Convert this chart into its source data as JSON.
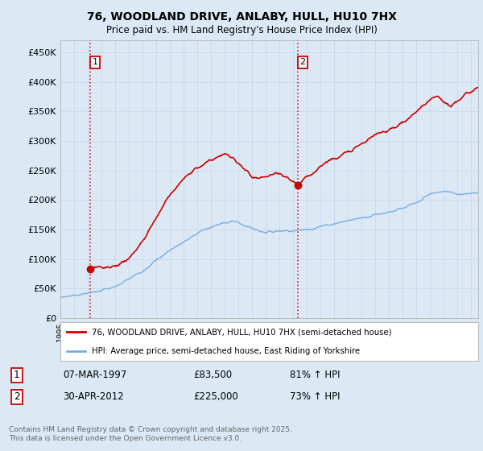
{
  "title": "76, WOODLAND DRIVE, ANLABY, HULL, HU10 7HX",
  "subtitle": "Price paid vs. HM Land Registry's House Price Index (HPI)",
  "ylabel_ticks": [
    "£0",
    "£50K",
    "£100K",
    "£150K",
    "£200K",
    "£250K",
    "£300K",
    "£350K",
    "£400K",
    "£450K"
  ],
  "ytick_values": [
    0,
    50000,
    100000,
    150000,
    200000,
    250000,
    300000,
    350000,
    400000,
    450000
  ],
  "ylim": [
    0,
    470000
  ],
  "xlim_start": 1995.0,
  "xlim_end": 2025.5,
  "purchase1": {
    "date_num": 1997.18,
    "price": 83500,
    "label": "1",
    "date_str": "07-MAR-1997",
    "price_str": "£83,500",
    "hpi_pct": "81% ↑ HPI"
  },
  "purchase2": {
    "date_num": 2012.33,
    "price": 225000,
    "label": "2",
    "date_str": "30-APR-2012",
    "price_str": "£225,000",
    "hpi_pct": "73% ↑ HPI"
  },
  "legend_line1": "76, WOODLAND DRIVE, ANLABY, HULL, HU10 7HX (semi-detached house)",
  "legend_line2": "HPI: Average price, semi-detached house, East Riding of Yorkshire",
  "footnote": "Contains HM Land Registry data © Crown copyright and database right 2025.\nThis data is licensed under the Open Government Licence v3.0.",
  "sale_color": "#cc0000",
  "hpi_color": "#7aace0",
  "background_color": "#dce9f5",
  "plot_bg_color": "#dce9f5",
  "grid_color": "#c8d8ec"
}
